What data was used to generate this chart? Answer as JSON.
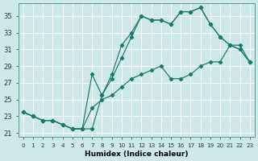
{
  "xlabel": "Humidex (Indice chaleur)",
  "background_color": "#cce8e8",
  "grid_color": "#ffffff",
  "line_color": "#1a7a6e",
  "xlim": [
    -0.5,
    23.5
  ],
  "ylim": [
    20.5,
    36.5
  ],
  "xticks": [
    0,
    1,
    2,
    3,
    4,
    5,
    6,
    7,
    8,
    9,
    10,
    11,
    12,
    13,
    14,
    15,
    16,
    17,
    18,
    19,
    20,
    21,
    22,
    23
  ],
  "yticks": [
    21,
    23,
    25,
    27,
    29,
    31,
    33,
    35
  ],
  "line1_x": [
    0,
    1,
    2,
    3,
    4,
    5,
    6,
    7,
    8,
    9,
    10,
    11,
    12,
    13,
    14,
    15,
    16,
    17,
    18,
    19,
    20,
    21,
    22,
    23
  ],
  "line1_y": [
    23.5,
    23.0,
    22.5,
    22.5,
    22.0,
    21.5,
    21.5,
    21.5,
    25.5,
    28.0,
    31.5,
    33.0,
    35.0,
    34.5,
    34.5,
    34.0,
    35.5,
    35.5,
    36.0,
    34.0,
    32.5,
    31.5,
    31.0,
    29.5
  ],
  "line2_x": [
    0,
    1,
    2,
    3,
    4,
    5,
    6,
    7,
    8,
    9,
    10,
    11,
    12,
    13,
    14,
    15,
    16,
    17,
    18,
    19,
    20,
    21,
    22,
    23
  ],
  "line2_y": [
    23.5,
    23.0,
    22.5,
    22.5,
    22.0,
    21.5,
    21.5,
    28.0,
    25.5,
    27.5,
    30.0,
    32.5,
    35.0,
    34.5,
    34.5,
    34.0,
    35.5,
    35.5,
    36.0,
    34.0,
    32.5,
    31.5,
    31.0,
    29.5
  ],
  "line3_x": [
    0,
    1,
    2,
    3,
    4,
    5,
    6,
    7,
    8,
    9,
    10,
    11,
    12,
    13,
    14,
    15,
    16,
    17,
    18,
    19,
    20,
    21,
    22,
    23
  ],
  "line3_y": [
    23.5,
    23.0,
    22.5,
    22.5,
    22.0,
    21.5,
    21.5,
    24.0,
    25.0,
    25.5,
    26.5,
    27.5,
    28.0,
    28.5,
    29.0,
    27.5,
    27.5,
    28.0,
    29.0,
    29.5,
    29.5,
    31.5,
    31.5,
    29.5
  ]
}
